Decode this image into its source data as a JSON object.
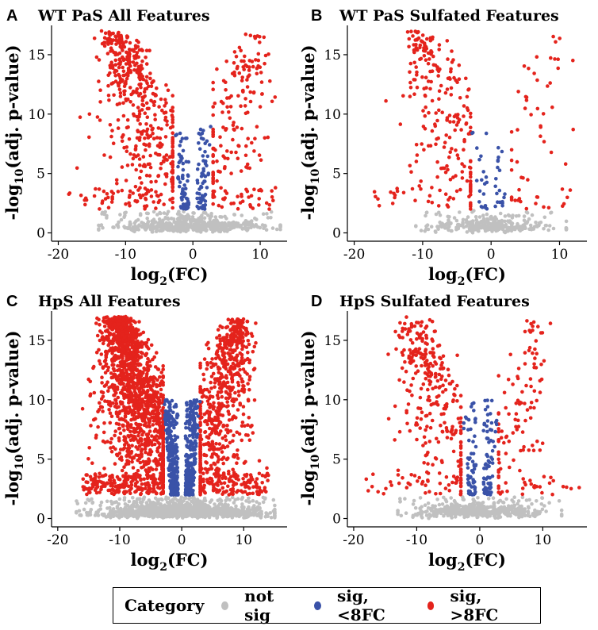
{
  "colors": {
    "not_sig": "#c0c0c0",
    "sig_lt": "#3a52a8",
    "sig_gt": "#e4231c"
  },
  "legend": {
    "title": "Category",
    "items": [
      {
        "label": "not sig",
        "color_key": "not_sig"
      },
      {
        "label": "sig, <8FC",
        "color_key": "sig_lt"
      },
      {
        "label": "sig, >8FC",
        "color_key": "sig_gt"
      }
    ]
  },
  "chart_data": [
    {
      "panel": "A",
      "type": "scatter",
      "title": "WT PaS All Features",
      "xlabel": "log2(FC)",
      "ylabel": "-log10(adj. p-value)",
      "xlim": [
        -21,
        14
      ],
      "ylim": [
        -0.3,
        17.2
      ],
      "xticks": [
        -20,
        -10,
        0,
        10
      ],
      "yticks": [
        0,
        5,
        10,
        15
      ],
      "density": "medium",
      "fc_threshold": 3,
      "sig_cut": 2.0,
      "cloud": {
        "xmin": -14,
        "xmax": 13,
        "n": 520
      },
      "red_left": {
        "n": 470,
        "xmin": -19,
        "xmax": -3,
        "peak": -11
      },
      "red_right": {
        "n": 170,
        "xmin": 3,
        "xmax": 12.5,
        "peak": 9
      },
      "blue": {
        "n": 130,
        "xmin": -3,
        "xmax": 3,
        "ymax": 9
      }
    },
    {
      "panel": "B",
      "type": "scatter",
      "title": "WT PaS Sulfated Features",
      "xlabel": "log2(FC)",
      "ylabel": "-log10(adj. p-value)",
      "xlim": [
        -21,
        14
      ],
      "ylim": [
        -0.3,
        17.2
      ],
      "xticks": [
        -20,
        -10,
        0,
        10
      ],
      "yticks": [
        0,
        5,
        10,
        15
      ],
      "density": "low",
      "fc_threshold": 3,
      "sig_cut": 2.0,
      "cloud": {
        "xmin": -11,
        "xmax": 11,
        "n": 280
      },
      "red_left": {
        "n": 230,
        "xmin": -18,
        "xmax": -3,
        "peak": -10
      },
      "red_right": {
        "n": 45,
        "xmin": 3,
        "xmax": 12,
        "peak": 9
      },
      "blue": {
        "n": 40,
        "xmin": -3,
        "xmax": 3,
        "ymax": 8.5
      }
    },
    {
      "panel": "C",
      "type": "scatter",
      "title": "HpS All Features",
      "xlabel": "log2(FC)",
      "ylabel": "-log10(adj. p-value)",
      "xlim": [
        -21,
        17
      ],
      "ylim": [
        -0.3,
        17.2
      ],
      "xticks": [
        -20,
        -10,
        0,
        10
      ],
      "yticks": [
        0,
        5,
        10,
        15
      ],
      "density": "high",
      "fc_threshold": 3,
      "sig_cut": 2.0,
      "cloud": {
        "xmin": -17,
        "xmax": 15,
        "n": 1100
      },
      "red_left": {
        "n": 1500,
        "xmin": -16,
        "xmax": -3,
        "peak": -10
      },
      "red_right": {
        "n": 700,
        "xmin": 3,
        "xmax": 14,
        "peak": 9
      },
      "blue": {
        "n": 600,
        "xmin": -3,
        "xmax": 3,
        "ymax": 10
      }
    },
    {
      "panel": "D",
      "type": "scatter",
      "title": "HpS Sulfated Features",
      "xlabel": "log2(FC)",
      "ylabel": "-log10(adj. p-value)",
      "xlim": [
        -21,
        17
      ],
      "ylim": [
        -0.3,
        17.2
      ],
      "xticks": [
        -20,
        -10,
        0,
        10
      ],
      "yticks": [
        0,
        5,
        10,
        15
      ],
      "density": "medium",
      "fc_threshold": 3,
      "sig_cut": 2.0,
      "cloud": {
        "xmin": -13,
        "xmax": 13,
        "n": 450
      },
      "red_left": {
        "n": 300,
        "xmin": -18,
        "xmax": -3,
        "peak": -10
      },
      "red_right": {
        "n": 110,
        "xmin": 3,
        "xmax": 16,
        "peak": 9
      },
      "blue": {
        "n": 140,
        "xmin": -3,
        "xmax": 3,
        "ymax": 10
      }
    }
  ]
}
